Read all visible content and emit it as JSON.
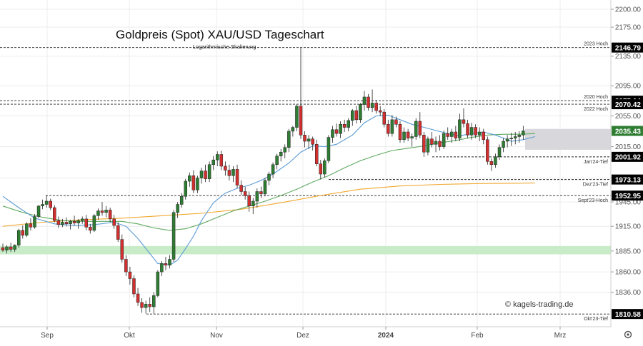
{
  "chart_data": {
    "type": "candlestick",
    "title": "Goldpreis (Spot) XAU/USD Tageschart",
    "subtitle": "Logarithmische Skalierung",
    "watermark": "© kagels-trading.de",
    "log_scale": true,
    "ylim": [
      1800,
      2205
    ],
    "grid": true,
    "y_ticks": [
      1836.0,
      1860.0,
      1885.0,
      1915.0,
      1945.0,
      1975.0,
      2015.0,
      2055.0,
      2095.0,
      2135.0,
      2175.0,
      2200.0
    ],
    "x_ticks": [
      {
        "label": "Sep",
        "bold": false
      },
      {
        "label": "Okt",
        "bold": false
      },
      {
        "label": "Nov",
        "bold": false
      },
      {
        "label": "Dez",
        "bold": false
      },
      {
        "label": "2024",
        "bold": true
      },
      {
        "label": "Feb",
        "bold": false
      },
      {
        "label": "Mrz",
        "bold": false
      }
    ],
    "levels": [
      {
        "value": "2146.79",
        "label": "2023 Hoch",
        "color": "#000000"
      },
      {
        "value": "2075.14",
        "label": "2020 Hoch",
        "color": "#000000"
      },
      {
        "value": "2070.42",
        "label": "2022 Hoch",
        "color": "#000000"
      },
      {
        "value": "2035.43",
        "label": "",
        "color": "#2e7d32"
      },
      {
        "value": "2001.92",
        "label": "Jan'24-Tief",
        "color": "#000000"
      },
      {
        "value": "1973.13",
        "label": "Dez'23-Tief",
        "color": "#000000"
      },
      {
        "value": "1952.95",
        "label": "Sept'23-Hoch",
        "color": "#000000"
      },
      {
        "value": "1810.58",
        "label": "Okt'23-Tief",
        "color": "#000000"
      }
    ],
    "zones": [
      {
        "from": 1881,
        "to": 1891,
        "color": "#c8ebc8"
      },
      {
        "from": 2011,
        "to": 2038,
        "color": "#d8d8dc"
      }
    ],
    "colors": {
      "up": "#2e7d32",
      "down": "#d32f2f",
      "ma_fast": "#5b9bd5",
      "ma_mid": "#5fa95f",
      "ma_slow": "#f0a830"
    },
    "candles": [
      {
        "o": 1889.0,
        "h": 1894.0,
        "l": 1884.0,
        "c": 1886.0
      },
      {
        "o": 1886.0,
        "h": 1892.0,
        "l": 1882.0,
        "c": 1890.0
      },
      {
        "o": 1890.0,
        "h": 1895.0,
        "l": 1884.0,
        "c": 1887.0
      },
      {
        "o": 1887.0,
        "h": 1893.0,
        "l": 1884.0,
        "c": 1892.0
      },
      {
        "o": 1892.0,
        "h": 1912.0,
        "l": 1889.0,
        "c": 1910.0
      },
      {
        "o": 1910.0,
        "h": 1916.0,
        "l": 1900.0,
        "c": 1904.0
      },
      {
        "o": 1904.0,
        "h": 1920.0,
        "l": 1902.0,
        "c": 1918.0
      },
      {
        "o": 1918.0,
        "h": 1925.0,
        "l": 1910.0,
        "c": 1914.0
      },
      {
        "o": 1914.0,
        "h": 1930.0,
        "l": 1912.0,
        "c": 1927.0
      },
      {
        "o": 1927.0,
        "h": 1941.0,
        "l": 1925.0,
        "c": 1940.0
      },
      {
        "o": 1940.0,
        "h": 1948.0,
        "l": 1936.0,
        "c": 1942.0
      },
      {
        "o": 1942.0,
        "h": 1953.0,
        "l": 1938.0,
        "c": 1946.0
      },
      {
        "o": 1946.0,
        "h": 1949.0,
        "l": 1935.0,
        "c": 1938.0
      },
      {
        "o": 1938.0,
        "h": 1941.0,
        "l": 1920.0,
        "c": 1922.0
      },
      {
        "o": 1922.0,
        "h": 1927.0,
        "l": 1913.0,
        "c": 1917.0
      },
      {
        "o": 1917.0,
        "h": 1924.0,
        "l": 1914.0,
        "c": 1920.0
      },
      {
        "o": 1920.0,
        "h": 1926.0,
        "l": 1915.0,
        "c": 1918.0
      },
      {
        "o": 1918.0,
        "h": 1923.0,
        "l": 1911.0,
        "c": 1921.0
      },
      {
        "o": 1921.0,
        "h": 1928.0,
        "l": 1916.0,
        "c": 1919.0
      },
      {
        "o": 1919.0,
        "h": 1924.0,
        "l": 1912.0,
        "c": 1922.0
      },
      {
        "o": 1922.0,
        "h": 1927.0,
        "l": 1918.0,
        "c": 1924.0
      },
      {
        "o": 1924.0,
        "h": 1929.0,
        "l": 1910.0,
        "c": 1914.0
      },
      {
        "o": 1914.0,
        "h": 1918.0,
        "l": 1906.0,
        "c": 1910.0
      },
      {
        "o": 1910.0,
        "h": 1930.0,
        "l": 1908.0,
        "c": 1928.0
      },
      {
        "o": 1928.0,
        "h": 1937.0,
        "l": 1923.0,
        "c": 1934.0
      },
      {
        "o": 1934.0,
        "h": 1945.0,
        "l": 1928.0,
        "c": 1932.0
      },
      {
        "o": 1932.0,
        "h": 1940.0,
        "l": 1926.0,
        "c": 1935.0
      },
      {
        "o": 1935.0,
        "h": 1938.0,
        "l": 1920.0,
        "c": 1924.0
      },
      {
        "o": 1924.0,
        "h": 1929.0,
        "l": 1912.0,
        "c": 1916.0
      },
      {
        "o": 1916.0,
        "h": 1920.0,
        "l": 1896.0,
        "c": 1899.0
      },
      {
        "o": 1899.0,
        "h": 1905.0,
        "l": 1871.0,
        "c": 1875.0
      },
      {
        "o": 1875.0,
        "h": 1880.0,
        "l": 1855.0,
        "c": 1860.0
      },
      {
        "o": 1860.0,
        "h": 1866.0,
        "l": 1845.0,
        "c": 1852.0
      },
      {
        "o": 1852.0,
        "h": 1856.0,
        "l": 1830.0,
        "c": 1834.0
      },
      {
        "o": 1834.0,
        "h": 1841.0,
        "l": 1820.0,
        "c": 1824.0
      },
      {
        "o": 1824.0,
        "h": 1829.0,
        "l": 1812.0,
        "c": 1818.0
      },
      {
        "o": 1818.0,
        "h": 1826.0,
        "l": 1811.0,
        "c": 1822.0
      },
      {
        "o": 1822.0,
        "h": 1830.0,
        "l": 1813.0,
        "c": 1819.0
      },
      {
        "o": 1819.0,
        "h": 1836.0,
        "l": 1811.0,
        "c": 1832.0
      },
      {
        "o": 1832.0,
        "h": 1862.0,
        "l": 1830.0,
        "c": 1860.0
      },
      {
        "o": 1860.0,
        "h": 1873.0,
        "l": 1855.0,
        "c": 1870.0
      },
      {
        "o": 1870.0,
        "h": 1878.0,
        "l": 1862.0,
        "c": 1868.0
      },
      {
        "o": 1868.0,
        "h": 1880.0,
        "l": 1864.0,
        "c": 1875.0
      },
      {
        "o": 1875.0,
        "h": 1935.0,
        "l": 1872.0,
        "c": 1932.0
      },
      {
        "o": 1932.0,
        "h": 1945.0,
        "l": 1925.0,
        "c": 1942.0
      },
      {
        "o": 1942.0,
        "h": 1956.0,
        "l": 1938.0,
        "c": 1952.0
      },
      {
        "o": 1952.0,
        "h": 1974.0,
        "l": 1948.0,
        "c": 1971.0
      },
      {
        "o": 1971.0,
        "h": 1982.0,
        "l": 1964.0,
        "c": 1978.0
      },
      {
        "o": 1978.0,
        "h": 1985.0,
        "l": 1956.0,
        "c": 1960.0
      },
      {
        "o": 1960.0,
        "h": 1978.0,
        "l": 1956.0,
        "c": 1975.0
      },
      {
        "o": 1975.0,
        "h": 1988.0,
        "l": 1968.0,
        "c": 1984.0
      },
      {
        "o": 1984.0,
        "h": 1992.0,
        "l": 1970.0,
        "c": 1974.0
      },
      {
        "o": 1974.0,
        "h": 1996.0,
        "l": 1970.0,
        "c": 1992.0
      },
      {
        "o": 1992.0,
        "h": 2003.0,
        "l": 1985.0,
        "c": 1998.0
      },
      {
        "o": 1998.0,
        "h": 2009.0,
        "l": 1990.0,
        "c": 2005.0
      },
      {
        "o": 2005.0,
        "h": 2010.0,
        "l": 1985.0,
        "c": 1990.0
      },
      {
        "o": 1990.0,
        "h": 1996.0,
        "l": 1978.0,
        "c": 1985.0
      },
      {
        "o": 1985.0,
        "h": 1992.0,
        "l": 1972.0,
        "c": 1978.0
      },
      {
        "o": 1978.0,
        "h": 1990.0,
        "l": 1970.0,
        "c": 1986.0
      },
      {
        "o": 1986.0,
        "h": 1992.0,
        "l": 1962.0,
        "c": 1966.0
      },
      {
        "o": 1966.0,
        "h": 1972.0,
        "l": 1954.0,
        "c": 1958.0
      },
      {
        "o": 1958.0,
        "h": 1964.0,
        "l": 1948.0,
        "c": 1953.0
      },
      {
        "o": 1953.0,
        "h": 1958.0,
        "l": 1933.0,
        "c": 1940.0
      },
      {
        "o": 1940.0,
        "h": 1950.0,
        "l": 1930.0,
        "c": 1946.0
      },
      {
        "o": 1946.0,
        "h": 1962.0,
        "l": 1938.0,
        "c": 1958.0
      },
      {
        "o": 1958.0,
        "h": 1964.0,
        "l": 1950.0,
        "c": 1955.0
      },
      {
        "o": 1955.0,
        "h": 1975.0,
        "l": 1952.0,
        "c": 1972.0
      },
      {
        "o": 1972.0,
        "h": 1983.0,
        "l": 1966.0,
        "c": 1980.0
      },
      {
        "o": 1980.0,
        "h": 1995.0,
        "l": 1975.0,
        "c": 1992.0
      },
      {
        "o": 1992.0,
        "h": 2006.0,
        "l": 1986.0,
        "c": 2003.0
      },
      {
        "o": 2003.0,
        "h": 2012.0,
        "l": 1996.0,
        "c": 2008.0
      },
      {
        "o": 2008.0,
        "h": 2018.0,
        "l": 2000.0,
        "c": 2014.0
      },
      {
        "o": 2014.0,
        "h": 2038.0,
        "l": 2008.0,
        "c": 2035.0
      },
      {
        "o": 2035.0,
        "h": 2042.0,
        "l": 2028.0,
        "c": 2040.0
      },
      {
        "o": 2040.0,
        "h": 2070.0,
        "l": 2035.0,
        "c": 2068.0
      },
      {
        "o": 2068.0,
        "h": 2146.79,
        "l": 2025.0,
        "c": 2030.0
      },
      {
        "o": 2030.0,
        "h": 2035.0,
        "l": 2014.0,
        "c": 2022.0
      },
      {
        "o": 2022.0,
        "h": 2030.0,
        "l": 2012.0,
        "c": 2025.0
      },
      {
        "o": 2025.0,
        "h": 2028.0,
        "l": 2010.0,
        "c": 2018.0
      },
      {
        "o": 2018.0,
        "h": 2024.0,
        "l": 1990.0,
        "c": 1993.0
      },
      {
        "o": 1993.0,
        "h": 1998.0,
        "l": 1973.13,
        "c": 1980.0
      },
      {
        "o": 1980.0,
        "h": 2000.0,
        "l": 1976.0,
        "c": 1997.0
      },
      {
        "o": 1997.0,
        "h": 2030.0,
        "l": 1994.0,
        "c": 2027.0
      },
      {
        "o": 2027.0,
        "h": 2042.0,
        "l": 2020.0,
        "c": 2037.0
      },
      {
        "o": 2037.0,
        "h": 2045.0,
        "l": 2028.0,
        "c": 2032.0
      },
      {
        "o": 2032.0,
        "h": 2048.0,
        "l": 2026.0,
        "c": 2044.0
      },
      {
        "o": 2044.0,
        "h": 2050.0,
        "l": 2034.0,
        "c": 2040.0
      },
      {
        "o": 2040.0,
        "h": 2052.0,
        "l": 2035.0,
        "c": 2049.0
      },
      {
        "o": 2049.0,
        "h": 2064.0,
        "l": 2042.0,
        "c": 2062.0
      },
      {
        "o": 2062.0,
        "h": 2068.0,
        "l": 2045.0,
        "c": 2050.0
      },
      {
        "o": 2050.0,
        "h": 2072.0,
        "l": 2046.0,
        "c": 2070.0
      },
      {
        "o": 2070.0,
        "h": 2088.0,
        "l": 2062.0,
        "c": 2080.0
      },
      {
        "o": 2080.0,
        "h": 2084.0,
        "l": 2062.0,
        "c": 2066.0
      },
      {
        "o": 2066.0,
        "h": 2090.0,
        "l": 2060.0,
        "c": 2072.0
      },
      {
        "o": 2072.0,
        "h": 2076.0,
        "l": 2058.0,
        "c": 2062.0
      },
      {
        "o": 2062.0,
        "h": 2068.0,
        "l": 2055.0,
        "c": 2060.0
      },
      {
        "o": 2060.0,
        "h": 2064.0,
        "l": 2040.0,
        "c": 2044.0
      },
      {
        "o": 2044.0,
        "h": 2050.0,
        "l": 2028.0,
        "c": 2032.0
      },
      {
        "o": 2032.0,
        "h": 2056.0,
        "l": 2028.0,
        "c": 2050.0
      },
      {
        "o": 2050.0,
        "h": 2054.0,
        "l": 2040.0,
        "c": 2044.0
      },
      {
        "o": 2044.0,
        "h": 2048.0,
        "l": 2020.0,
        "c": 2024.0
      },
      {
        "o": 2024.0,
        "h": 2040.0,
        "l": 2020.0,
        "c": 2034.0
      },
      {
        "o": 2034.0,
        "h": 2038.0,
        "l": 2022.0,
        "c": 2026.0
      },
      {
        "o": 2026.0,
        "h": 2032.0,
        "l": 2015.0,
        "c": 2028.0
      },
      {
        "o": 2028.0,
        "h": 2052.0,
        "l": 2024.0,
        "c": 2048.0
      },
      {
        "o": 2048.0,
        "h": 2060.0,
        "l": 2026.0,
        "c": 2030.0
      },
      {
        "o": 2030.0,
        "h": 2034.0,
        "l": 2001.92,
        "c": 2008.0
      },
      {
        "o": 2008.0,
        "h": 2028.0,
        "l": 2004.0,
        "c": 2025.0
      },
      {
        "o": 2025.0,
        "h": 2034.0,
        "l": 2014.0,
        "c": 2018.0
      },
      {
        "o": 2018.0,
        "h": 2028.0,
        "l": 2008.0,
        "c": 2022.0
      },
      {
        "o": 2022.0,
        "h": 2030.0,
        "l": 2010.0,
        "c": 2015.0
      },
      {
        "o": 2015.0,
        "h": 2036.0,
        "l": 2012.0,
        "c": 2032.0
      },
      {
        "o": 2032.0,
        "h": 2040.0,
        "l": 2024.0,
        "c": 2028.0
      },
      {
        "o": 2028.0,
        "h": 2038.0,
        "l": 2020.0,
        "c": 2034.0
      },
      {
        "o": 2034.0,
        "h": 2042.0,
        "l": 2022.0,
        "c": 2026.0
      },
      {
        "o": 2026.0,
        "h": 2058.0,
        "l": 2022.0,
        "c": 2050.0
      },
      {
        "o": 2050.0,
        "h": 2065.0,
        "l": 2040.0,
        "c": 2045.0
      },
      {
        "o": 2045.0,
        "h": 2050.0,
        "l": 2026.0,
        "c": 2030.0
      },
      {
        "o": 2030.0,
        "h": 2046.0,
        "l": 2024.0,
        "c": 2040.0
      },
      {
        "o": 2040.0,
        "h": 2044.0,
        "l": 2026.0,
        "c": 2030.0
      },
      {
        "o": 2030.0,
        "h": 2040.0,
        "l": 2022.0,
        "c": 2034.0
      },
      {
        "o": 2034.0,
        "h": 2038.0,
        "l": 2018.0,
        "c": 2024.0
      },
      {
        "o": 2024.0,
        "h": 2028.0,
        "l": 1992.0,
        "c": 1996.0
      },
      {
        "o": 1996.0,
        "h": 2000.0,
        "l": 1984.0,
        "c": 1992.0
      },
      {
        "o": 1992.0,
        "h": 2006.0,
        "l": 1988.0,
        "c": 2002.0
      },
      {
        "o": 2002.0,
        "h": 2018.0,
        "l": 1998.0,
        "c": 2014.0
      },
      {
        "o": 2014.0,
        "h": 2026.0,
        "l": 2008.0,
        "c": 2022.0
      },
      {
        "o": 2022.0,
        "h": 2030.0,
        "l": 2014.0,
        "c": 2025.0
      },
      {
        "o": 2025.0,
        "h": 2033.0,
        "l": 2016.0,
        "c": 2026.0
      },
      {
        "o": 2026.0,
        "h": 2034.0,
        "l": 2018.0,
        "c": 2028.0
      },
      {
        "o": 2028.0,
        "h": 2035.0,
        "l": 2020.0,
        "c": 2030.0
      },
      {
        "o": 2030.0,
        "h": 2042.0,
        "l": 2024.0,
        "c": 2035.43
      }
    ],
    "ma_fast": [
      [
        0,
        1952.0
      ],
      [
        4,
        1938.0
      ],
      [
        8,
        1925.0
      ],
      [
        13,
        1918.0
      ],
      [
        18,
        1916.0
      ],
      [
        23,
        1917.0
      ],
      [
        28,
        1920.0
      ],
      [
        31,
        1915.0
      ],
      [
        34,
        1900.0
      ],
      [
        37,
        1882.0
      ],
      [
        39,
        1870.0
      ],
      [
        42,
        1868.0
      ],
      [
        44,
        1874.0
      ],
      [
        46,
        1888.0
      ],
      [
        48,
        1903.0
      ],
      [
        50,
        1922.0
      ],
      [
        53,
        1944.0
      ],
      [
        56,
        1956.0
      ],
      [
        59,
        1962.0
      ],
      [
        62,
        1966.0
      ],
      [
        65,
        1972.0
      ],
      [
        68,
        1980.0
      ],
      [
        72,
        1994.0
      ],
      [
        75,
        2008.0
      ],
      [
        78,
        2016.0
      ],
      [
        81,
        2015.0
      ],
      [
        84,
        2018.0
      ],
      [
        88,
        2030.0
      ],
      [
        91,
        2046.0
      ],
      [
        94,
        2055.0
      ],
      [
        97,
        2056.0
      ],
      [
        100,
        2050.0
      ],
      [
        103,
        2044.0
      ],
      [
        106,
        2040.0
      ],
      [
        109,
        2036.0
      ],
      [
        112,
        2032.0
      ],
      [
        115,
        2029.0
      ],
      [
        118,
        2032.0
      ],
      [
        121,
        2034.0
      ],
      [
        124,
        2030.0
      ],
      [
        126,
        2026.0
      ],
      [
        128,
        2022.0
      ],
      [
        131,
        2024.0
      ],
      [
        134,
        2028.0
      ]
    ],
    "ma_mid": [
      [
        0,
        1940.0
      ],
      [
        5,
        1932.0
      ],
      [
        10,
        1926.0
      ],
      [
        15,
        1922.0
      ],
      [
        20,
        1921.0
      ],
      [
        25,
        1921.0
      ],
      [
        30,
        1921.0
      ],
      [
        34,
        1918.0
      ],
      [
        38,
        1913.0
      ],
      [
        42,
        1910.0
      ],
      [
        46,
        1912.0
      ],
      [
        50,
        1918.0
      ],
      [
        54,
        1926.0
      ],
      [
        58,
        1934.0
      ],
      [
        62,
        1940.0
      ],
      [
        66,
        1946.0
      ],
      [
        70,
        1953.0
      ],
      [
        74,
        1961.0
      ],
      [
        78,
        1970.0
      ],
      [
        82,
        1978.0
      ],
      [
        86,
        1988.0
      ],
      [
        90,
        1997.0
      ],
      [
        94,
        2004.0
      ],
      [
        98,
        2010.0
      ],
      [
        102,
        2013.0
      ],
      [
        106,
        2016.0
      ],
      [
        110,
        2020.0
      ],
      [
        114,
        2023.0
      ],
      [
        118,
        2027.0
      ],
      [
        122,
        2030.0
      ],
      [
        126,
        2031.0
      ],
      [
        130,
        2031.0
      ],
      [
        134,
        2032.0
      ]
    ],
    "ma_slow": [
      [
        0,
        1915.0
      ],
      [
        10,
        1920.0
      ],
      [
        20,
        1923.0
      ],
      [
        30,
        1925.0
      ],
      [
        40,
        1928.0
      ],
      [
        50,
        1931.0
      ],
      [
        60,
        1936.0
      ],
      [
        70,
        1944.0
      ],
      [
        80,
        1953.0
      ],
      [
        90,
        1961.0
      ],
      [
        100,
        1965.0
      ],
      [
        110,
        1967.0
      ],
      [
        120,
        1968.0
      ],
      [
        130,
        1968.5
      ],
      [
        134,
        1968.8
      ]
    ]
  }
}
